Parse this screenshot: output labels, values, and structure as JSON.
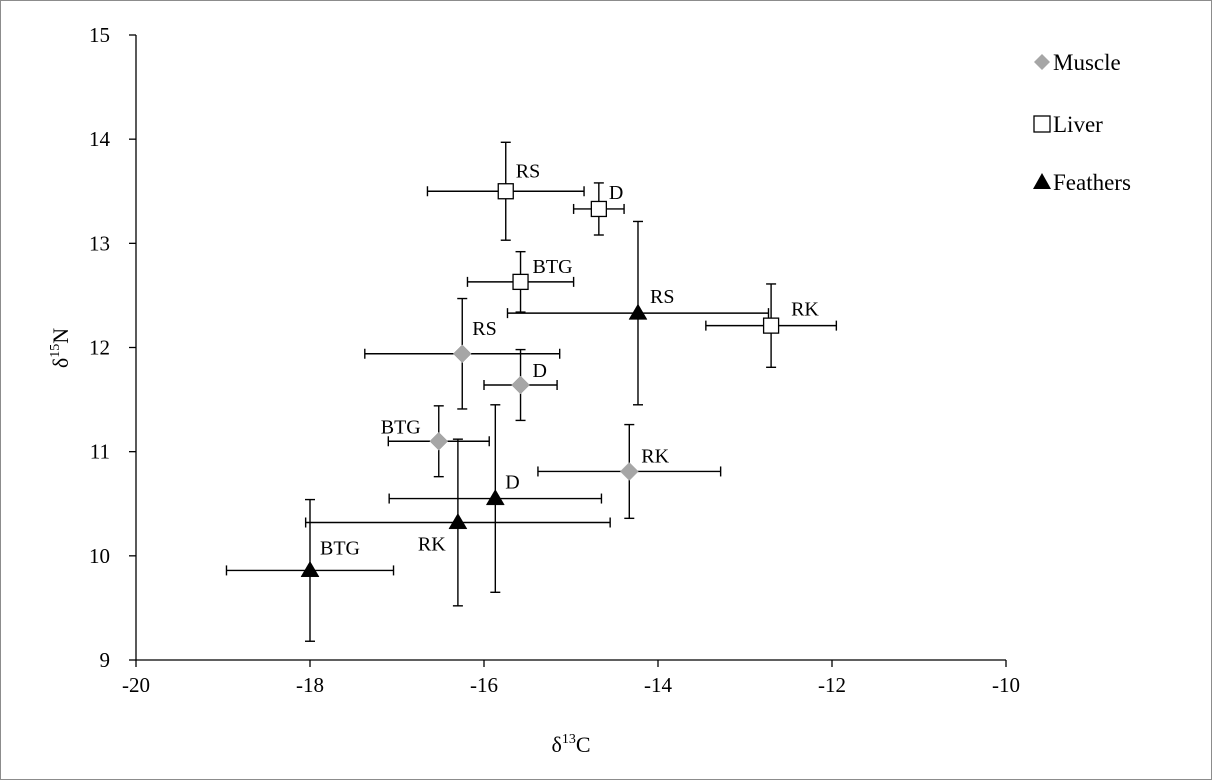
{
  "chart_data": {
    "type": "scatter",
    "title": "",
    "xlabel": {
      "prefix": "δ",
      "sup": "13",
      "suffix": "C"
    },
    "ylabel": {
      "prefix": "δ",
      "sup": "15",
      "suffix": "N"
    },
    "xlim": [
      -20,
      -10
    ],
    "ylim": [
      9,
      15
    ],
    "x_ticks": [
      -20,
      -18,
      -16,
      -14,
      -12,
      -10
    ],
    "y_ticks": [
      9,
      10,
      11,
      12,
      13,
      14,
      15
    ],
    "grid": false,
    "legend_position": "top-right",
    "series": [
      {
        "name": "Muscle",
        "marker": "diamond",
        "color": "#a6a6a6",
        "points": [
          {
            "label": "RS",
            "x": -16.25,
            "y": 11.94,
            "xerr": 1.12,
            "yerr": 0.53
          },
          {
            "label": "D",
            "x": -15.58,
            "y": 11.64,
            "xerr": 0.42,
            "yerr": 0.34
          },
          {
            "label": "BTG",
            "x": -16.52,
            "y": 11.1,
            "xerr": 0.58,
            "yerr": 0.34
          },
          {
            "label": "RK",
            "x": -14.33,
            "y": 10.81,
            "xerr": 1.05,
            "yerr": 0.45
          }
        ]
      },
      {
        "name": "Liver",
        "marker": "square",
        "color": "#ffffff",
        "points": [
          {
            "label": "RS",
            "x": -15.75,
            "y": 13.5,
            "xerr": 0.9,
            "yerr": 0.47
          },
          {
            "label": "D",
            "x": -14.68,
            "y": 13.33,
            "xerr": 0.29,
            "yerr": 0.25
          },
          {
            "label": "BTG",
            "x": -15.58,
            "y": 12.63,
            "xerr": 0.61,
            "yerr": 0.29
          },
          {
            "label": "RK",
            "x": -12.7,
            "y": 12.21,
            "xerr": 0.75,
            "yerr": 0.4
          }
        ]
      },
      {
        "name": "Feathers",
        "marker": "triangle",
        "color": "#000000",
        "points": [
          {
            "label": "RS",
            "x": -14.23,
            "y": 12.33,
            "xerr": 1.5,
            "yerr": 0.88
          },
          {
            "label": "D",
            "x": -15.87,
            "y": 10.55,
            "xerr": 1.22,
            "yerr": 0.9
          },
          {
            "label": "RK",
            "x": -16.3,
            "y": 10.32,
            "xerr": 1.75,
            "yerr": 0.8
          },
          {
            "label": "BTG",
            "x": -18.0,
            "y": 9.86,
            "xerr": 0.96,
            "yerr": 0.68
          }
        ]
      }
    ]
  }
}
